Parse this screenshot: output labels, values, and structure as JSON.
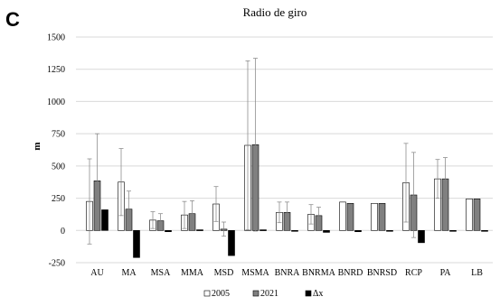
{
  "panel_label": "C",
  "chart_data": {
    "type": "bar",
    "title": "Radio de giro",
    "xlabel": "",
    "ylabel": "m",
    "ylim": [
      -250,
      1500
    ],
    "yticks": [
      -250,
      0,
      250,
      500,
      750,
      1000,
      1250,
      1500
    ],
    "grid": true,
    "legend_position": "bottom",
    "categories": [
      "AU",
      "MA",
      "MSA",
      "MMA",
      "MSD",
      "MSMA",
      "BNRA",
      "BNRMA",
      "BNRD",
      "BNRSD",
      "RCP",
      "PA",
      "LB"
    ],
    "series": [
      {
        "name": "2005",
        "color": "#ffffff",
        "values": [
          225,
          375,
          80,
          120,
          205,
          660,
          140,
          125,
          220,
          210,
          370,
          400,
          245
        ],
        "error": [
          330,
          260,
          65,
          105,
          135,
          655,
          80,
          75,
          null,
          null,
          305,
          150,
          null
        ]
      },
      {
        "name": "2021",
        "color": "#808080",
        "values": [
          385,
          165,
          75,
          130,
          10,
          665,
          140,
          115,
          210,
          210,
          275,
          400,
          245
        ],
        "error": [
          365,
          140,
          55,
          100,
          55,
          670,
          80,
          65,
          null,
          null,
          330,
          165,
          null
        ]
      },
      {
        "name": "Δx",
        "color": "#000000",
        "values": [
          160,
          -210,
          -10,
          5,
          -195,
          5,
          0,
          -15,
          -10,
          0,
          -95,
          0,
          0
        ],
        "error": [
          null,
          null,
          null,
          null,
          null,
          null,
          null,
          null,
          null,
          null,
          null,
          null,
          null
        ]
      }
    ]
  }
}
